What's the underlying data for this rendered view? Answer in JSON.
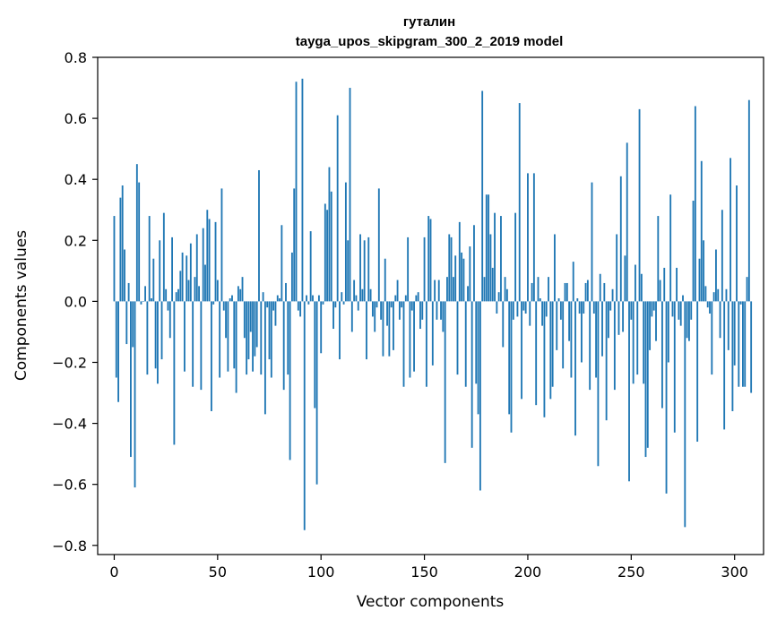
{
  "chart_data": {
    "type": "bar",
    "title": "гуталин",
    "subtitle": "tayga_upos_skipgram_300_2_2019 model",
    "xlabel": "Vector components",
    "ylabel": "Components values",
    "xlim": [
      -8,
      314
    ],
    "ylim": [
      -0.83,
      0.8
    ],
    "xticks": [
      0,
      50,
      100,
      150,
      200,
      250,
      300
    ],
    "xtick_labels": [
      "0",
      "50",
      "100",
      "150",
      "200",
      "250",
      "300"
    ],
    "yticks": [
      -0.8,
      -0.6,
      -0.4,
      -0.2,
      0.0,
      0.2,
      0.4,
      0.6,
      0.8
    ],
    "ytick_labels": [
      "−0.8",
      "−0.6",
      "−0.4",
      "−0.2",
      "0.0",
      "0.2",
      "0.4",
      "0.6",
      "0.8"
    ],
    "bar_color": "#1f77b4",
    "grid": false,
    "values": [
      0.28,
      -0.25,
      -0.33,
      0.34,
      0.38,
      0.17,
      -0.14,
      0.06,
      -0.51,
      -0.15,
      -0.61,
      0.45,
      0.39,
      -0.01,
      0.0,
      0.05,
      -0.24,
      0.28,
      0.01,
      0.14,
      -0.22,
      -0.27,
      0.2,
      -0.19,
      0.29,
      0.04,
      -0.03,
      -0.12,
      0.21,
      -0.47,
      0.03,
      0.04,
      0.1,
      0.16,
      -0.23,
      0.15,
      0.07,
      0.19,
      -0.28,
      0.08,
      0.22,
      0.05,
      -0.29,
      0.24,
      0.12,
      0.3,
      0.27,
      -0.36,
      -0.01,
      0.26,
      0.07,
      -0.25,
      0.37,
      -0.03,
      -0.12,
      -0.23,
      0.01,
      0.02,
      -0.22,
      -0.3,
      0.05,
      0.04,
      0.08,
      -0.12,
      -0.24,
      -0.19,
      -0.1,
      -0.23,
      -0.18,
      -0.15,
      0.43,
      -0.24,
      0.03,
      -0.37,
      -0.02,
      -0.19,
      -0.25,
      -0.03,
      -0.08,
      0.02,
      0.01,
      0.25,
      -0.29,
      0.06,
      -0.24,
      -0.52,
      0.16,
      0.37,
      0.72,
      -0.03,
      -0.05,
      0.73,
      -0.75,
      0.02,
      -0.01,
      0.23,
      0.02,
      -0.35,
      -0.6,
      0.02,
      -0.17,
      -0.01,
      0.32,
      0.3,
      0.44,
      0.36,
      -0.09,
      -0.02,
      0.61,
      -0.19,
      0.03,
      -0.01,
      0.39,
      0.2,
      0.7,
      -0.1,
      0.07,
      0.02,
      -0.03,
      0.22,
      0.04,
      0.2,
      -0.19,
      0.21,
      0.04,
      -0.05,
      -0.1,
      -0.02,
      0.37,
      -0.06,
      -0.18,
      0.14,
      -0.08,
      -0.18,
      -0.02,
      -0.16,
      0.02,
      0.07,
      -0.06,
      -0.02,
      -0.28,
      0.02,
      0.21,
      -0.25,
      -0.03,
      -0.23,
      0.02,
      0.03,
      -0.09,
      -0.06,
      0.21,
      -0.28,
      0.28,
      0.27,
      -0.21,
      0.07,
      -0.06,
      0.07,
      -0.06,
      -0.1,
      -0.53,
      0.08,
      0.22,
      0.21,
      0.08,
      0.15,
      -0.24,
      0.26,
      0.16,
      0.14,
      -0.28,
      0.05,
      0.18,
      -0.48,
      0.25,
      -0.27,
      -0.37,
      -0.62,
      0.69,
      0.08,
      0.35,
      0.35,
      0.22,
      0.11,
      0.29,
      -0.04,
      0.03,
      0.28,
      -0.15,
      0.08,
      0.04,
      -0.37,
      -0.43,
      -0.06,
      0.29,
      -0.05,
      0.65,
      -0.32,
      -0.03,
      -0.04,
      0.42,
      -0.08,
      0.06,
      0.42,
      -0.34,
      0.08,
      0.01,
      -0.08,
      -0.38,
      -0.05,
      0.08,
      -0.32,
      -0.28,
      0.22,
      -0.16,
      0.01,
      -0.06,
      -0.22,
      0.06,
      0.06,
      -0.13,
      -0.25,
      0.13,
      -0.44,
      0.01,
      -0.04,
      -0.2,
      -0.04,
      0.06,
      0.07,
      -0.29,
      0.39,
      -0.04,
      -0.25,
      -0.54,
      0.09,
      -0.18,
      0.06,
      -0.39,
      -0.12,
      -0.03,
      0.04,
      -0.29,
      0.22,
      -0.11,
      0.41,
      -0.1,
      0.15,
      0.52,
      -0.59,
      -0.06,
      -0.27,
      0.12,
      -0.24,
      0.63,
      0.09,
      -0.27,
      -0.51,
      -0.48,
      -0.16,
      -0.05,
      -0.03,
      -0.13,
      0.28,
      0.07,
      -0.35,
      0.11,
      -0.63,
      -0.2,
      0.35,
      -0.05,
      -0.43,
      0.11,
      -0.06,
      -0.08,
      0.02,
      -0.74,
      -0.12,
      -0.13,
      -0.06,
      0.33,
      0.64,
      -0.46,
      0.14,
      0.46,
      0.2,
      0.05,
      -0.02,
      -0.04,
      -0.24,
      0.03,
      0.17,
      0.04,
      -0.12,
      0.3,
      -0.42,
      0.04,
      -0.16,
      0.47,
      -0.36,
      -0.21,
      0.38,
      -0.28,
      -0.01,
      -0.28,
      -0.28,
      0.08,
      0.66,
      -0.3
    ]
  }
}
